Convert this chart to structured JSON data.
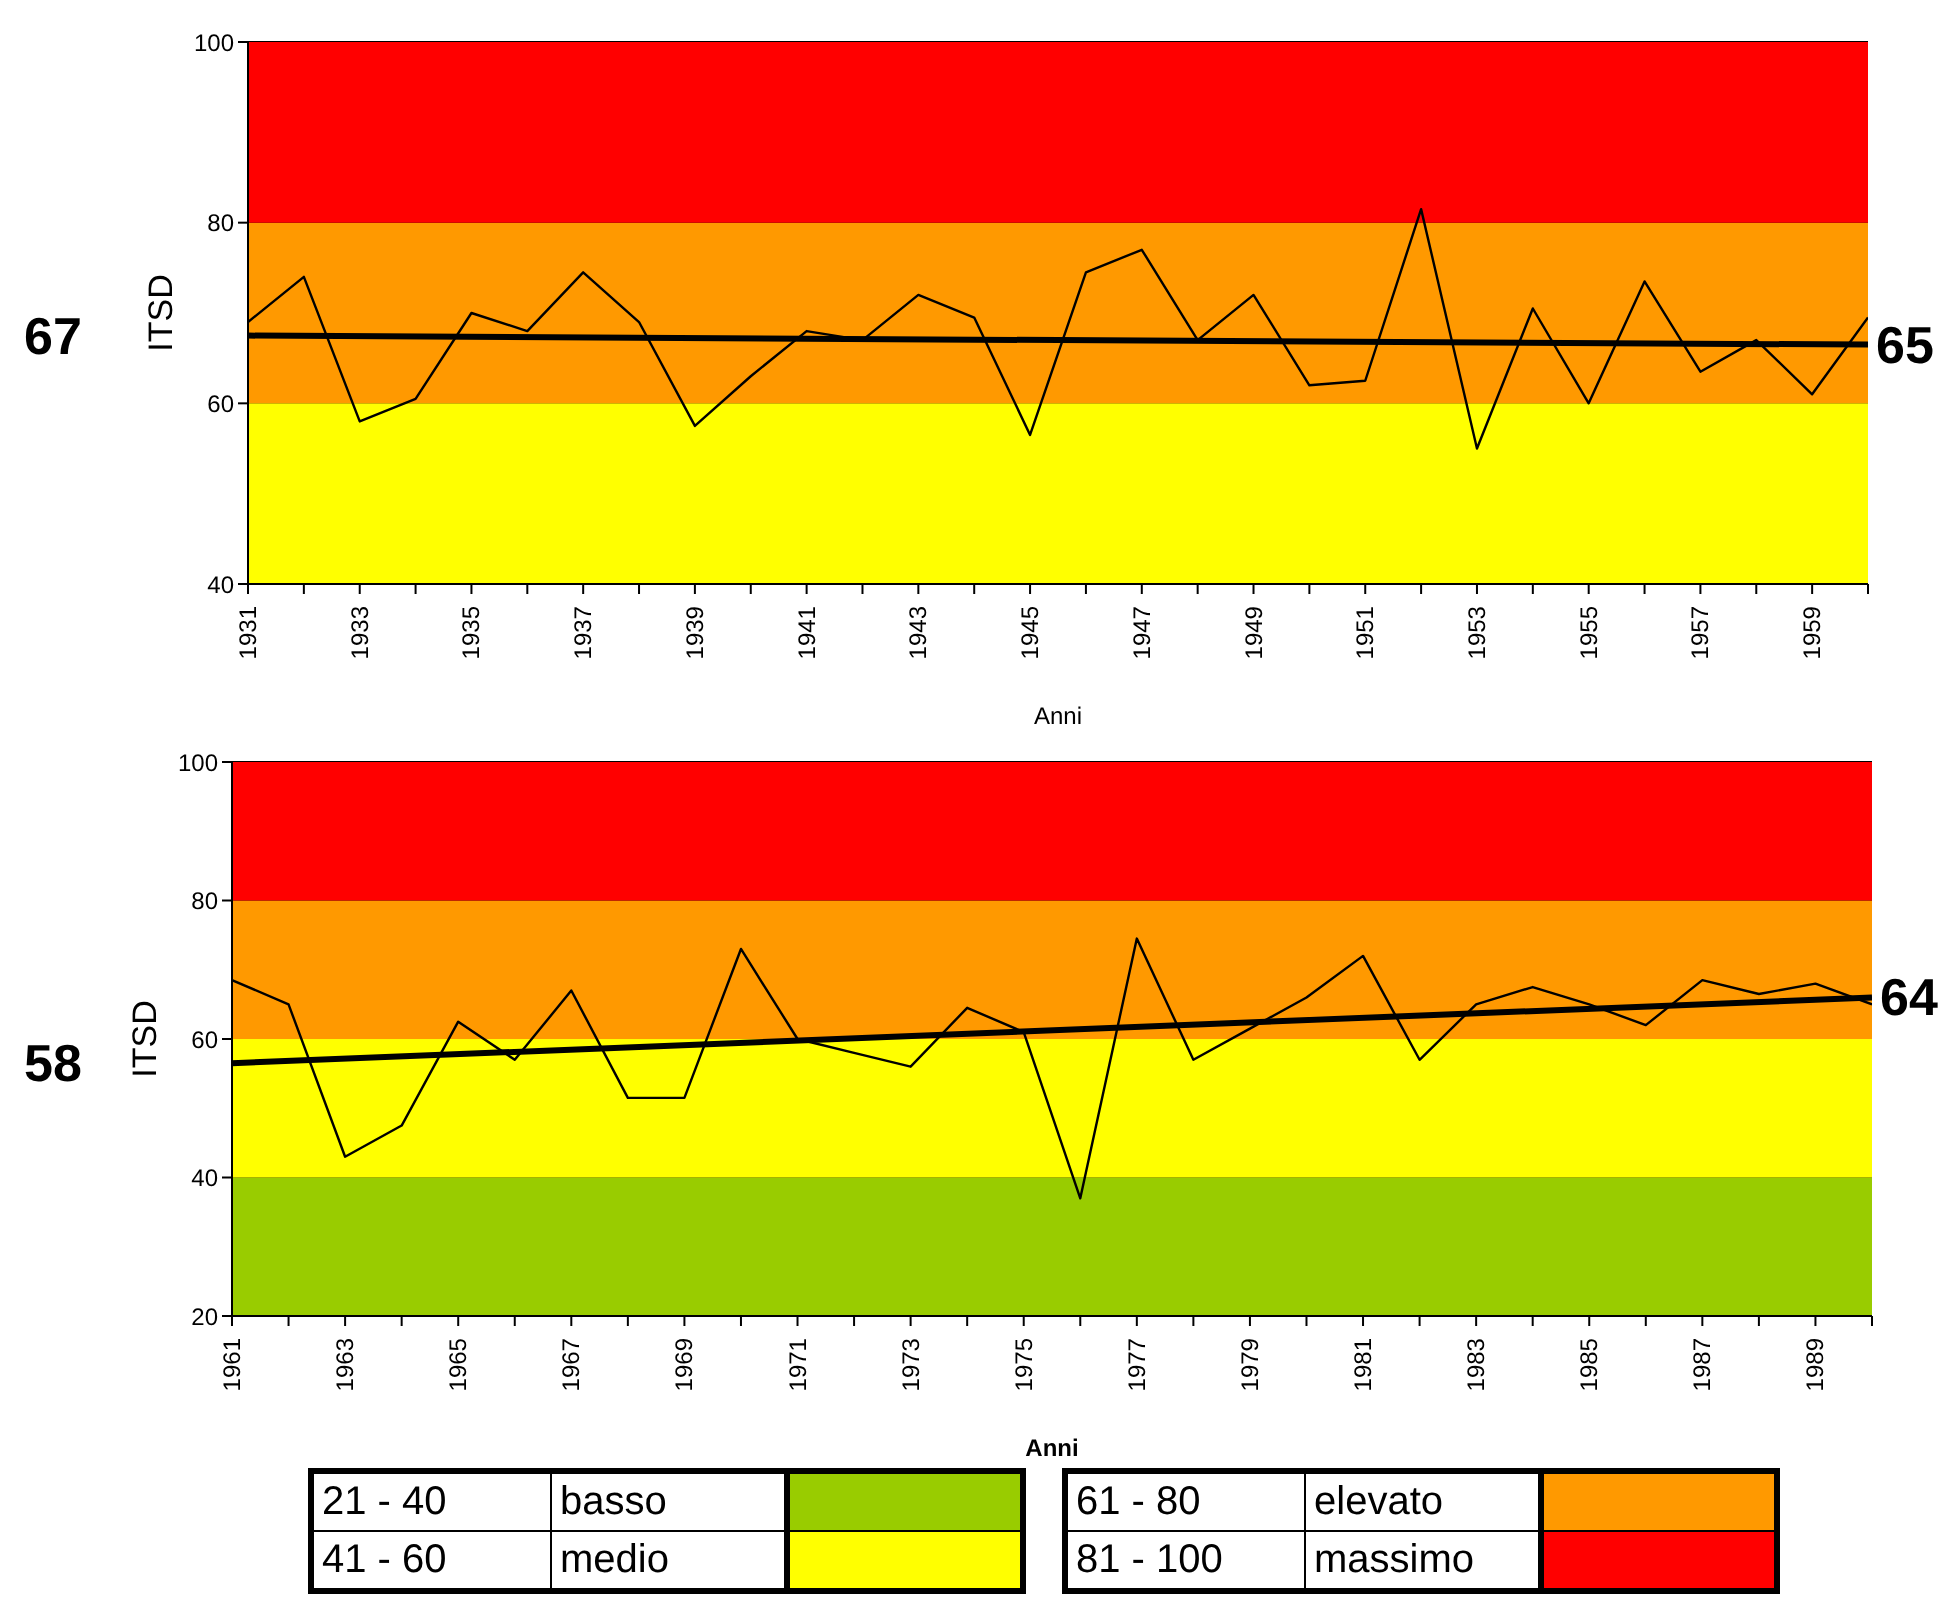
{
  "chart_data": [
    {
      "type": "line",
      "xlabel": "Anni",
      "ylabel": "ITSD",
      "xlim": [
        1931,
        1960
      ],
      "ylim": [
        40,
        100
      ],
      "yticks": [
        40,
        60,
        80,
        100
      ],
      "xticks": [
        1931,
        {
          "value": 1932,
          "label": null
        },
        1933,
        {
          "value": 1934,
          "label": null
        },
        1935,
        {
          "value": 1936,
          "label": null
        },
        1937,
        {
          "value": 1938,
          "label": null
        },
        1939,
        {
          "value": 1940,
          "label": null
        },
        1941,
        {
          "value": 1942,
          "label": null
        },
        1943,
        {
          "value": 1944,
          "label": null
        },
        1945,
        {
          "value": 1946,
          "label": null
        },
        1947,
        {
          "value": 1948,
          "label": null
        },
        1949,
        {
          "value": 1950,
          "label": null
        },
        1951,
        {
          "value": 1952,
          "label": null
        },
        1953,
        {
          "value": 1954,
          "label": null
        },
        1955,
        {
          "value": 1956,
          "label": null
        },
        1957,
        {
          "value": 1958,
          "label": null
        },
        1959,
        {
          "value": 1960,
          "label": null
        }
      ],
      "grid": "y",
      "legend": false,
      "marker": "none",
      "x": [
        1931,
        1932,
        1933,
        1934,
        1935,
        1936,
        1937,
        1938,
        1939,
        1940,
        1941,
        1942,
        1943,
        1944,
        1945,
        1946,
        1947,
        1948,
        1949,
        1950,
        1951,
        1952,
        1953,
        1954,
        1955,
        1956,
        1957,
        1958,
        1959,
        1960
      ],
      "series": [
        {
          "color": "#000000",
          "values": [
            69,
            74,
            58,
            60.5,
            70,
            68,
            74.5,
            69,
            57.5,
            63,
            68,
            67,
            72,
            69.5,
            56.5,
            74.5,
            77,
            67,
            72,
            62,
            62.5,
            81.5,
            55,
            70.5,
            60,
            73.5,
            63.5,
            67,
            61,
            69.5
          ]
        },
        {
          "type": "line",
          "color": "#000000",
          "x": [
            1931,
            1960
          ],
          "values": [
            67.5,
            66.5
          ]
        }
      ],
      "bands": [
        {
          "axis": "y",
          "from": 40,
          "to": 60,
          "color": "#ffff00"
        },
        {
          "axis": "y",
          "from": 60,
          "to": 80,
          "color": "#ff9900"
        },
        {
          "axis": "y",
          "from": 80,
          "to": 100,
          "color": "#ff0000"
        }
      ],
      "annotations": [
        "67",
        "65"
      ]
    },
    {
      "type": "line",
      "xlabel": "Anni",
      "ylabel": "ITSD",
      "xlim": [
        1961,
        1990
      ],
      "ylim": [
        20,
        100
      ],
      "yticks": [
        20,
        40,
        60,
        80,
        100
      ],
      "xticks": [
        1961,
        {
          "value": 1962,
          "label": null
        },
        1963,
        {
          "value": 1964,
          "label": null
        },
        1965,
        {
          "value": 1966,
          "label": null
        },
        1967,
        {
          "value": 1968,
          "label": null
        },
        1969,
        {
          "value": 1970,
          "label": null
        },
        1971,
        {
          "value": 1972,
          "label": null
        },
        1973,
        {
          "value": 1974,
          "label": null
        },
        1975,
        {
          "value": 1976,
          "label": null
        },
        1977,
        {
          "value": 1978,
          "label": null
        },
        1979,
        {
          "value": 1980,
          "label": null
        },
        1981,
        {
          "value": 1982,
          "label": null
        },
        1983,
        {
          "value": 1984,
          "label": null
        },
        1985,
        {
          "value": 1986,
          "label": null
        },
        1987,
        {
          "value": 1988,
          "label": null
        },
        1989,
        {
          "value": 1990,
          "label": null
        }
      ],
      "grid": "y",
      "legend": false,
      "marker": "none",
      "x": [
        1961,
        1962,
        1963,
        1964,
        1965,
        1966,
        1967,
        1968,
        1969,
        1970,
        1971,
        1972,
        1973,
        1974,
        1975,
        1976,
        1977,
        1978,
        1979,
        1980,
        1981,
        1982,
        1983,
        1984,
        1985,
        1986,
        1987,
        1988,
        1989,
        1990
      ],
      "series": [
        {
          "color": "#000000",
          "values": [
            68.5,
            65,
            43,
            47.5,
            62.5,
            57,
            67,
            51.5,
            51.5,
            73,
            60,
            58,
            56,
            64.5,
            61,
            37,
            74.5,
            57,
            61.5,
            66,
            72,
            57,
            65,
            67.5,
            65,
            62,
            68.5,
            66.5,
            68,
            65
          ]
        },
        {
          "type": "line",
          "color": "#000000",
          "x": [
            1961,
            1990
          ],
          "values": [
            56.5,
            66
          ]
        }
      ],
      "bands": [
        {
          "axis": "y",
          "from": 20,
          "to": 40,
          "color": "#99cc00"
        },
        {
          "axis": "y",
          "from": 40,
          "to": 60,
          "color": "#ffff00"
        },
        {
          "axis": "y",
          "from": 60,
          "to": 80,
          "color": "#ff9900"
        },
        {
          "axis": "y",
          "from": 80,
          "to": 100,
          "color": "#ff0000"
        }
      ],
      "annotations": [
        "58",
        "64"
      ]
    },
    {
      "type": "other",
      "annotations": [
        "21 - 40",
        "basso",
        "41 - 60",
        "medio",
        "61 - 80",
        "elevato",
        "81 - 100",
        "massimo"
      ],
      "colors": [
        "#99cc00",
        "#ffff00",
        "#ff9900",
        "#ff0000"
      ]
    }
  ]
}
